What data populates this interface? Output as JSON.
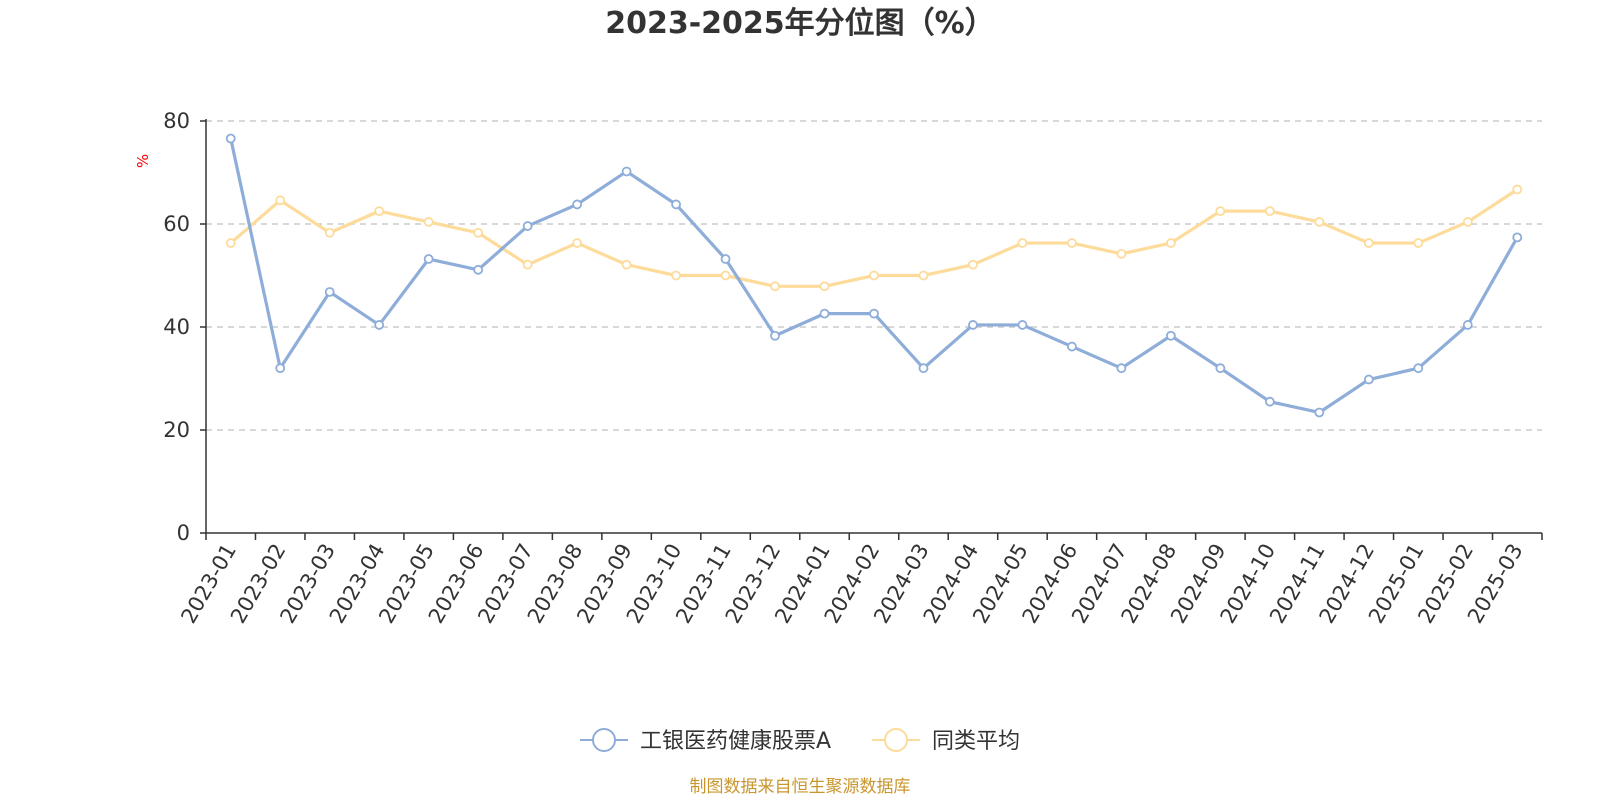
{
  "chart_data": {
    "type": "line",
    "title": "2023-2025年分位图（%）",
    "ylabel": "%",
    "xlabel": "",
    "ylim": [
      0,
      80
    ],
    "yticks": [
      0,
      20,
      40,
      60,
      80
    ],
    "grid": true,
    "legend_position": "bottom",
    "categories": [
      "2023-01",
      "2023-02",
      "2023-03",
      "2023-04",
      "2023-05",
      "2023-06",
      "2023-07",
      "2023-08",
      "2023-09",
      "2023-10",
      "2023-11",
      "2023-12",
      "2024-01",
      "2024-02",
      "2024-03",
      "2024-04",
      "2024-05",
      "2024-06",
      "2024-07",
      "2024-08",
      "2024-09",
      "2024-10",
      "2024-11",
      "2024-12",
      "2025-01",
      "2025-02",
      "2025-03"
    ],
    "series": [
      {
        "name": "工银医药健康股票A",
        "color": "#8eadd8",
        "values": [
          76.6,
          32.0,
          46.8,
          40.4,
          53.2,
          51.1,
          59.6,
          63.8,
          70.2,
          63.8,
          53.2,
          38.3,
          42.6,
          42.6,
          32.0,
          40.4,
          40.4,
          36.2,
          32.0,
          38.3,
          32.0,
          25.5,
          23.4,
          29.8,
          32.0,
          40.4,
          57.4
        ]
      },
      {
        "name": "同类平均",
        "color": "#fddb9b",
        "values": [
          56.3,
          64.6,
          58.3,
          62.5,
          60.4,
          58.3,
          52.1,
          56.3,
          52.1,
          50.0,
          50.0,
          47.9,
          47.9,
          50.0,
          50.0,
          52.1,
          56.3,
          56.3,
          54.2,
          56.3,
          62.5,
          62.5,
          60.4,
          56.3,
          56.3,
          60.4,
          66.7
        ]
      }
    ]
  },
  "source": "制图数据来自恒生聚源数据库"
}
